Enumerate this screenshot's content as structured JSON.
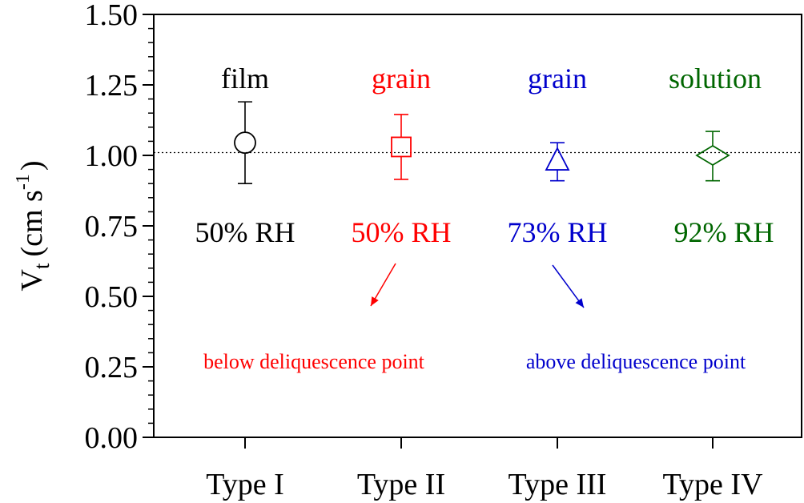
{
  "chart_data": {
    "type": "scatter",
    "ylabel": "V",
    "ylabel_sub": "t",
    "ylabel_unit": "(cm s",
    "ylabel_sup": "-1",
    "ylabel_close": ")",
    "ylim": [
      0.0,
      1.5
    ],
    "yticks": [
      "0.00",
      "0.25",
      "0.50",
      "0.75",
      "1.00",
      "1.25",
      "1.50"
    ],
    "categories": [
      "Type I",
      "Type II",
      "Type III",
      "Type IV"
    ],
    "reference_line": 1.01,
    "points": [
      {
        "category": "Type I",
        "value": 1.045,
        "err_low": 0.9,
        "err_high": 1.19,
        "marker": "circle",
        "color": "#000000",
        "state": "film",
        "rh": "50% RH"
      },
      {
        "category": "Type II",
        "value": 1.03,
        "err_low": 0.915,
        "err_high": 1.145,
        "marker": "square",
        "color": "#ff0000",
        "state": "grain",
        "rh": "50% RH"
      },
      {
        "category": "Type III",
        "value": 0.98,
        "err_low": 0.91,
        "err_high": 1.045,
        "marker": "triangle",
        "color": "#0000cc",
        "state": "grain",
        "rh": "73% RH"
      },
      {
        "category": "Type IV",
        "value": 1.0,
        "err_low": 0.91,
        "err_high": 1.085,
        "marker": "diamond",
        "color": "#006600",
        "state": "solution",
        "rh": "92% RH"
      }
    ],
    "annotations": [
      {
        "text": "below deliquescence point",
        "color": "#ff0000"
      },
      {
        "text": "above deliquescence point",
        "color": "#0000cc"
      }
    ],
    "grid": false
  }
}
